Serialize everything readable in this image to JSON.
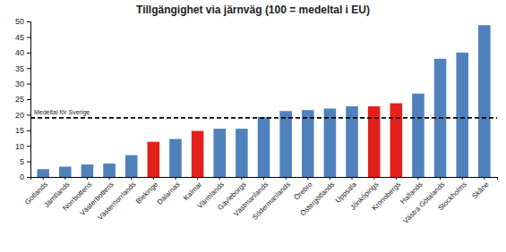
{
  "chart_data": {
    "type": "bar",
    "title": "Tillgängighet via järnväg (100 = medeltal i EU)",
    "categories": [
      "Gotlands",
      "Jämtlands",
      "Norrbottens",
      "Västerbottens",
      "Västernorrlands",
      "Blekinge",
      "Dalarnas",
      "Kalmar",
      "Värmlands",
      "Gävleborgs",
      "Västmanlands",
      "Södermanlands",
      "Örebro",
      "Östergötlands",
      "Uppsala",
      "Jönköpings",
      "Kronobergs",
      "Hallands",
      "Västra Götalands",
      "Stockholms",
      "Skåne"
    ],
    "values": [
      2.5,
      3.3,
      4,
      4.3,
      7,
      11.3,
      12.2,
      14.8,
      15.5,
      15.5,
      19.2,
      21.2,
      21.5,
      22,
      22.7,
      22.7,
      23.7,
      26.8,
      38,
      40,
      48.8
    ],
    "colors": [
      "#4f81bd",
      "#4f81bd",
      "#4f81bd",
      "#4f81bd",
      "#4f81bd",
      "#e3201b",
      "#4f81bd",
      "#e3201b",
      "#4f81bd",
      "#4f81bd",
      "#4f81bd",
      "#4f81bd",
      "#4f81bd",
      "#4f81bd",
      "#4f81bd",
      "#e3201b",
      "#e3201b",
      "#4f81bd",
      "#4f81bd",
      "#4f81bd",
      "#4f81bd"
    ],
    "reference_line": {
      "label": "Medeltal för Sverige",
      "value": 19
    },
    "ylim": [
      0,
      50
    ],
    "yticks": [
      0,
      5,
      10,
      15,
      20,
      25,
      30,
      35,
      40,
      45,
      50
    ],
    "grid": false
  }
}
